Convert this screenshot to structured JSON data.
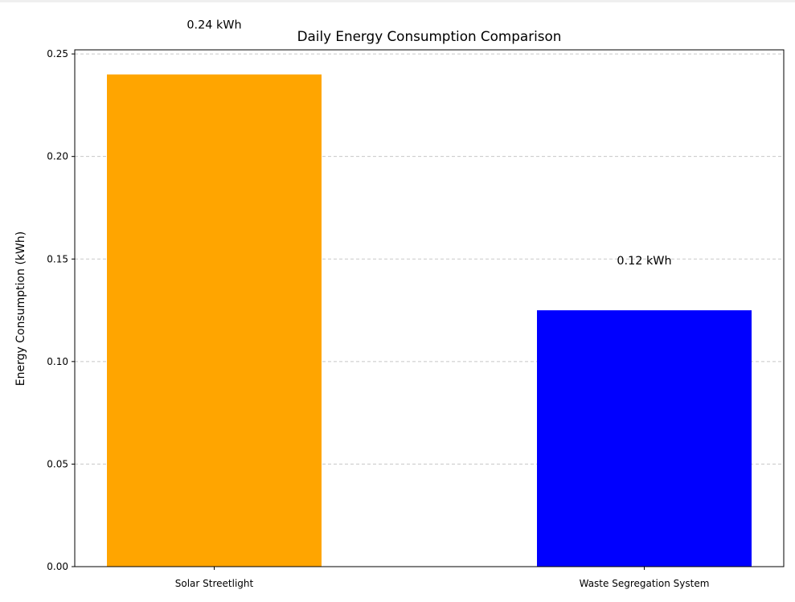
{
  "chart_data": {
    "type": "bar",
    "title": "Daily Energy Consumption Comparison",
    "xlabel": "",
    "ylabel": "Energy Consumption (kWh)",
    "categories": [
      "Solar Streetlight",
      "Waste Segregation System"
    ],
    "values": [
      0.24,
      0.125
    ],
    "data_labels": [
      "0.24 kWh",
      "0.12 kWh"
    ],
    "colors": [
      "#FFA500",
      "#0000FF"
    ],
    "ylim": [
      0,
      0.252
    ],
    "yticks": [
      0.0,
      0.05,
      0.1,
      0.15,
      0.2,
      0.25
    ],
    "ytick_labels": [
      "0.00",
      "0.05",
      "0.10",
      "0.15",
      "0.20",
      "0.25"
    ],
    "grid": "y-dashed",
    "legend": "none"
  }
}
